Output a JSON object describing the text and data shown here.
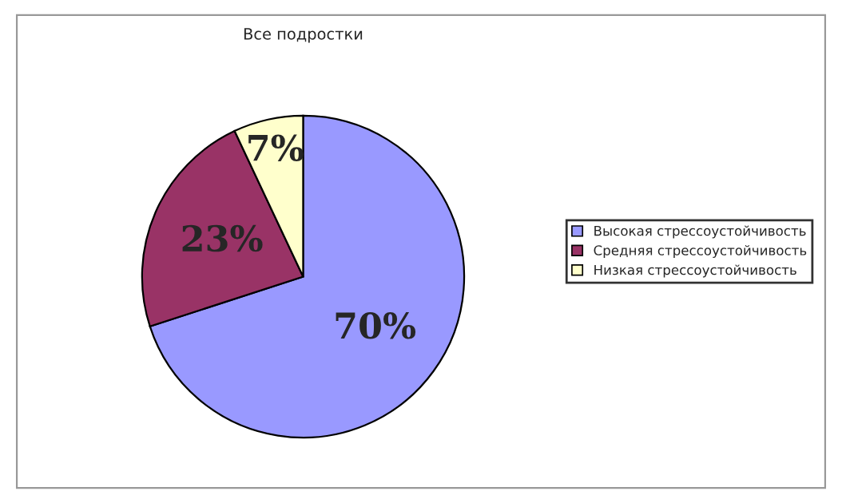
{
  "chart_data": {
    "type": "pie",
    "title": "Все подростки",
    "categories": [
      "Высокая стрессоустойчивость",
      "Средняя стрессоустойчивость",
      "Низкая стрессоустойчивость"
    ],
    "values": [
      70,
      23,
      7
    ],
    "colors": [
      "#9999ff",
      "#993366",
      "#ffffcc"
    ],
    "value_labels": [
      "70%",
      "23%",
      "7%"
    ],
    "legend": "right"
  }
}
